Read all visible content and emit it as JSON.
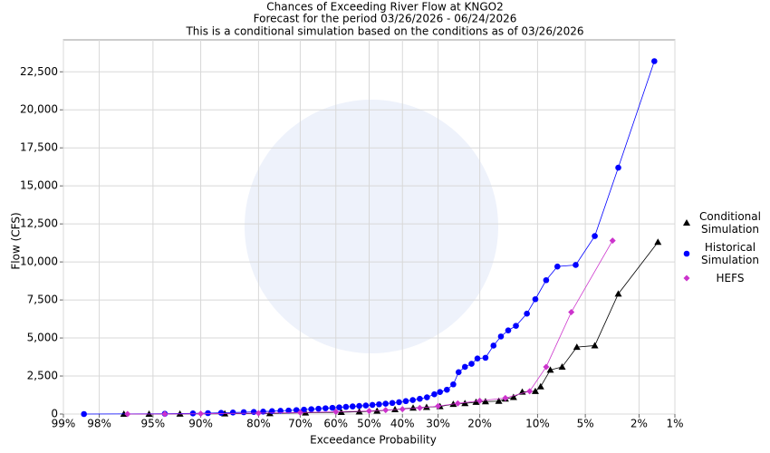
{
  "chart_data": {
    "type": "scatter",
    "title": "Chances of Exceeding River Flow at KNGO2",
    "subtitle": "Forecast for the period 03/26/2026 - 06/24/2026",
    "note": "This is a conditional simulation based on the conditions as of 03/26/2026",
    "xlabel": "Exceedance Probability",
    "ylabel": "Flow (CFS)",
    "xscale": "normal-probability",
    "xlim": [
      99,
      1
    ],
    "xticks": [
      {
        "value": 99,
        "label": "99%"
      },
      {
        "value": 98,
        "label": "98%"
      },
      {
        "value": 95,
        "label": "95%"
      },
      {
        "value": 90,
        "label": "90%"
      },
      {
        "value": 80,
        "label": "80%"
      },
      {
        "value": 70,
        "label": "70%"
      },
      {
        "value": 60,
        "label": "60%"
      },
      {
        "value": 50,
        "label": "50%"
      },
      {
        "value": 40,
        "label": "40%"
      },
      {
        "value": 30,
        "label": "30%"
      },
      {
        "value": 20,
        "label": "20%"
      },
      {
        "value": 10,
        "label": "10%"
      },
      {
        "value": 5,
        "label": "5%"
      },
      {
        "value": 2,
        "label": "2%"
      },
      {
        "value": 1,
        "label": "1%"
      }
    ],
    "ylim": [
      0,
      24600
    ],
    "yticks": [
      0,
      {
        "value": 2500,
        "label": "2,500"
      },
      {
        "value": 5000,
        "label": "5,000"
      },
      {
        "value": 7500,
        "label": "7,500"
      },
      {
        "value": 10000,
        "label": "10,000"
      },
      {
        "value": 12500,
        "label": "12,500"
      },
      {
        "value": 15000,
        "label": "15,000"
      },
      {
        "value": 17500,
        "label": "17,500"
      },
      {
        "value": 20000,
        "label": "20,000"
      },
      {
        "value": 22500,
        "label": "22,500"
      }
    ],
    "grid": true,
    "legend": "right",
    "series": [
      {
        "name": "Conditional Simulation",
        "color": "#000000",
        "marker": "triangle",
        "x": [
          96.9,
          95.3,
          92.5,
          86.4,
          77.5,
          68.6,
          58.4,
          53,
          47.6,
          42.2,
          36.9,
          33.1,
          29.5,
          26.1,
          23.3,
          20.8,
          18.8,
          16.2,
          15,
          13.6,
          12.2,
          10.3,
          9.6,
          8.4,
          7.1,
          5.7,
          4.3,
          2.9,
          1.4
        ],
        "values": [
          0,
          0,
          10,
          20,
          40,
          80,
          120,
          150,
          200,
          300,
          400,
          450,
          500,
          650,
          700,
          780,
          820,
          850,
          1000,
          1100,
          1450,
          1500,
          1800,
          2900,
          3100,
          4400,
          4500,
          7900,
          11300
        ]
      },
      {
        "name": "Historical Simulation",
        "color": "#0000ff",
        "marker": "circle",
        "x": [
          98.5,
          94,
          91,
          89,
          87,
          85,
          83,
          81,
          79,
          77,
          75,
          73,
          71,
          69,
          67,
          65,
          63,
          61,
          59,
          57,
          55,
          53,
          51,
          49,
          47,
          45,
          43,
          41,
          39,
          37,
          35,
          33,
          31,
          29.5,
          27.7,
          26.1,
          24.8,
          23.3,
          21.8,
          20.5,
          18.8,
          17.2,
          15.8,
          14.5,
          13.2,
          11.5,
          10.3,
          8.9,
          7.6,
          5.8,
          4.3,
          2.9,
          1.5
        ],
        "values": [
          0,
          20,
          40,
          60,
          80,
          100,
          120,
          140,
          160,
          190,
          210,
          230,
          260,
          290,
          320,
          350,
          380,
          410,
          440,
          470,
          500,
          530,
          560,
          600,
          640,
          680,
          730,
          780,
          850,
          920,
          1000,
          1100,
          1300,
          1450,
          1600,
          1950,
          2750,
          3100,
          3300,
          3650,
          3700,
          4500,
          5100,
          5500,
          5800,
          6600,
          7550,
          8800,
          9700,
          9800,
          11700,
          16200,
          23200
        ]
      },
      {
        "name": "HEFS",
        "color": "#cc33cc",
        "marker": "diamond",
        "x": [
          96.7,
          94,
          90,
          80,
          70,
          60,
          50,
          45,
          40,
          35,
          30,
          25,
          20,
          15,
          11.1,
          8.9,
          6.2,
          3.2
        ],
        "values": [
          0,
          0,
          20,
          60,
          100,
          150,
          200,
          260,
          320,
          400,
          520,
          700,
          870,
          1050,
          1500,
          3100,
          6700,
          11400
        ]
      }
    ]
  }
}
